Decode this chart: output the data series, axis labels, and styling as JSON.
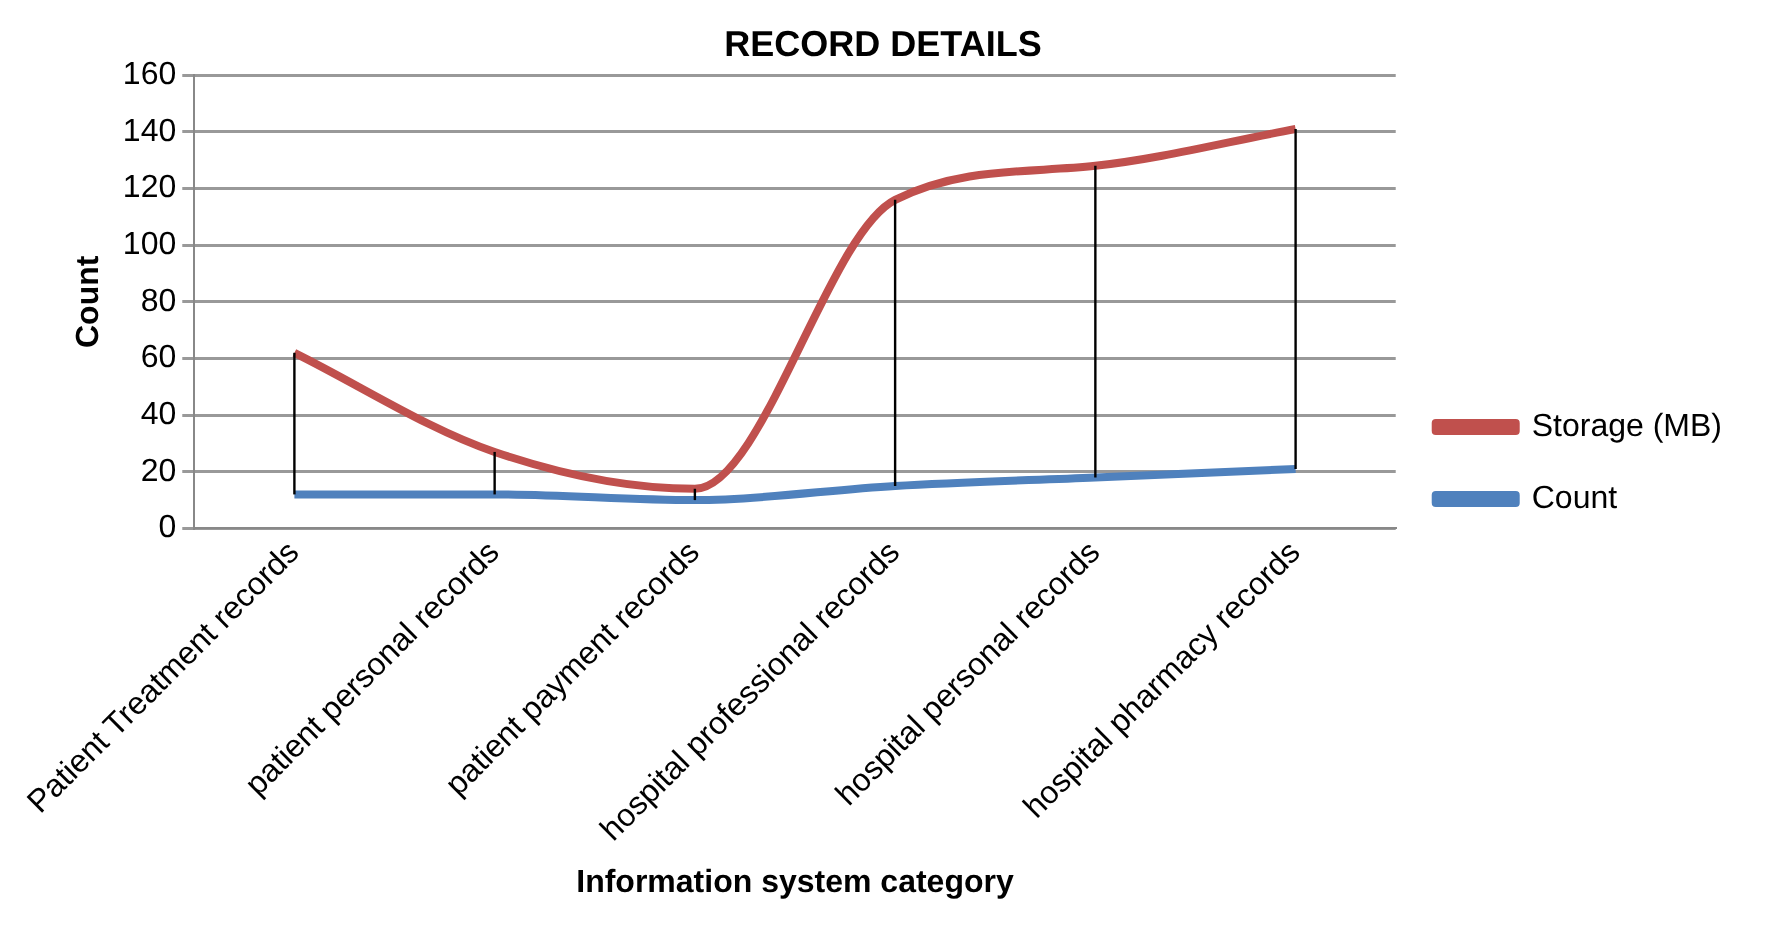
{
  "chart_data": {
    "type": "line",
    "title": "RECORD DETAILS",
    "xlabel": "Information system category",
    "ylabel": "Count",
    "categories": [
      "Patient Treatment records",
      "patient personal records",
      "patient payment records",
      "hospital professional records",
      "hospital personal records",
      "hospital pharmacy records"
    ],
    "series": [
      {
        "name": "Storage (MB)",
        "color": "#c0504d",
        "values": [
          62,
          27,
          14,
          116,
          128,
          141
        ]
      },
      {
        "name": "Count",
        "color": "#4f81bd",
        "values": [
          12,
          12,
          10,
          15,
          18,
          21
        ],
        "errors": [
          [
            12,
            62
          ],
          [
            12,
            27
          ],
          [
            10,
            14
          ],
          [
            15,
            116
          ],
          [
            18,
            128
          ],
          [
            21,
            141
          ]
        ]
      }
    ],
    "ylim": [
      0,
      160
    ],
    "yticks": [
      0,
      20,
      40,
      60,
      80,
      100,
      120,
      140,
      160
    ],
    "grid": "y",
    "legend": "right",
    "marker": "none"
  }
}
